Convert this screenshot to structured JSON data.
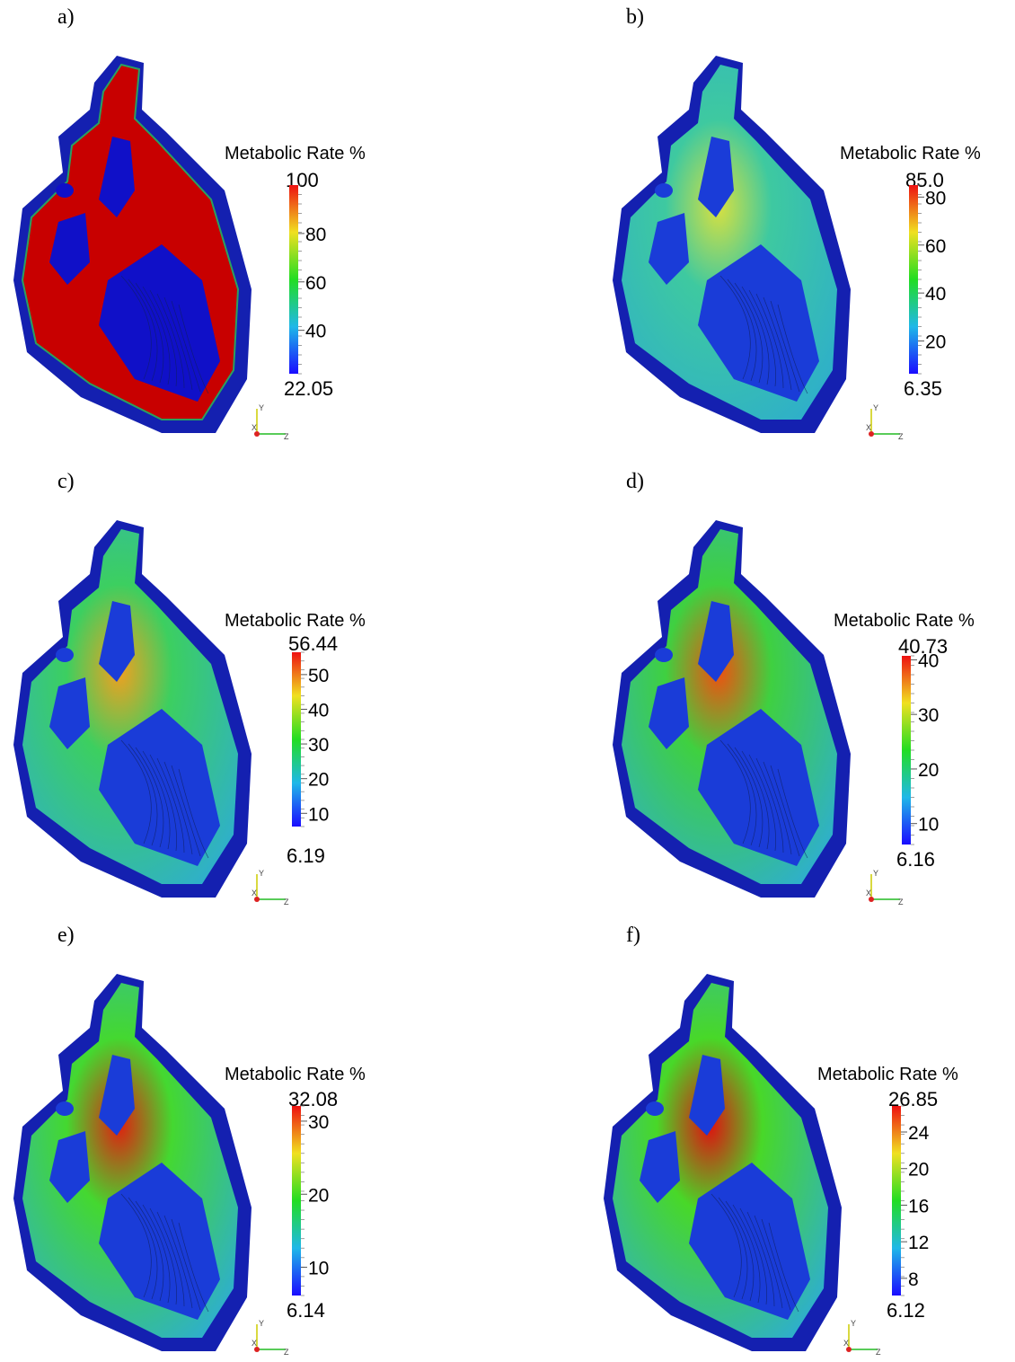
{
  "colorbar_colors": [
    "#1a0cff",
    "#1fb8e8",
    "#22dd22",
    "#f0e020",
    "#ee1111"
  ],
  "axes_labels": {
    "y": "Y",
    "x": "X",
    "z": "Z"
  },
  "panels": [
    {
      "label": "a)",
      "title": "Metabolic Rate %",
      "max_label": "100",
      "min_label": "22.05",
      "min": 22.05,
      "max": 100,
      "ticks": [
        {
          "value": 40,
          "label": "40"
        },
        {
          "value": 60,
          "label": "60"
        },
        {
          "value": 80,
          "label": "80"
        }
      ],
      "tissue_color": "#c80000",
      "cavity_color": "#1010c8"
    },
    {
      "label": "b)",
      "title": "Metabolic Rate %",
      "max_label": "85.0",
      "min_label": "6.35",
      "min": 6.35,
      "max": 85.0,
      "ticks": [
        {
          "value": 20,
          "label": "20"
        },
        {
          "value": 40,
          "label": "40"
        },
        {
          "value": 60,
          "label": "60"
        },
        {
          "value": 80,
          "label": "80"
        }
      ],
      "tissue_color": "#3ec9a0",
      "cavity_color": "#1a3cd8"
    },
    {
      "label": "c)",
      "title": "Metabolic Rate %",
      "max_label": "56.44",
      "min_label": "6.19",
      "min": 6.19,
      "max": 56.44,
      "ticks": [
        {
          "value": 10,
          "label": "10"
        },
        {
          "value": 20,
          "label": "20"
        },
        {
          "value": 30,
          "label": "30"
        },
        {
          "value": 40,
          "label": "40"
        },
        {
          "value": 50,
          "label": "50"
        }
      ],
      "tissue_color": "#3ccf60",
      "cavity_color": "#1a3cd8"
    },
    {
      "label": "d)",
      "title": "Metabolic Rate %",
      "max_label": "40.73",
      "min_label": "6.16",
      "min": 6.16,
      "max": 40.73,
      "ticks": [
        {
          "value": 10,
          "label": "10"
        },
        {
          "value": 20,
          "label": "20"
        },
        {
          "value": 30,
          "label": "30"
        },
        {
          "value": 40,
          "label": "40"
        }
      ],
      "tissue_color": "#3fd040",
      "cavity_color": "#1a3cd8"
    },
    {
      "label": "e)",
      "title": "Metabolic Rate %",
      "max_label": "32.08",
      "min_label": "6.14",
      "min": 6.14,
      "max": 32.08,
      "ticks": [
        {
          "value": 10,
          "label": "10"
        },
        {
          "value": 20,
          "label": "20"
        },
        {
          "value": 30,
          "label": "30"
        }
      ],
      "tissue_color": "#44d830",
      "cavity_color": "#1a3cd8"
    },
    {
      "label": "f)",
      "title": "Metabolic Rate %",
      "max_label": "26.85",
      "min_label": "6.12",
      "min": 6.12,
      "max": 26.85,
      "ticks": [
        {
          "value": 8,
          "label": "8"
        },
        {
          "value": 12,
          "label": "12"
        },
        {
          "value": 16,
          "label": "16"
        },
        {
          "value": 20,
          "label": "20"
        },
        {
          "value": 24,
          "label": "24"
        }
      ],
      "tissue_color": "#48d828",
      "cavity_color": "#1a3cd8"
    }
  ]
}
